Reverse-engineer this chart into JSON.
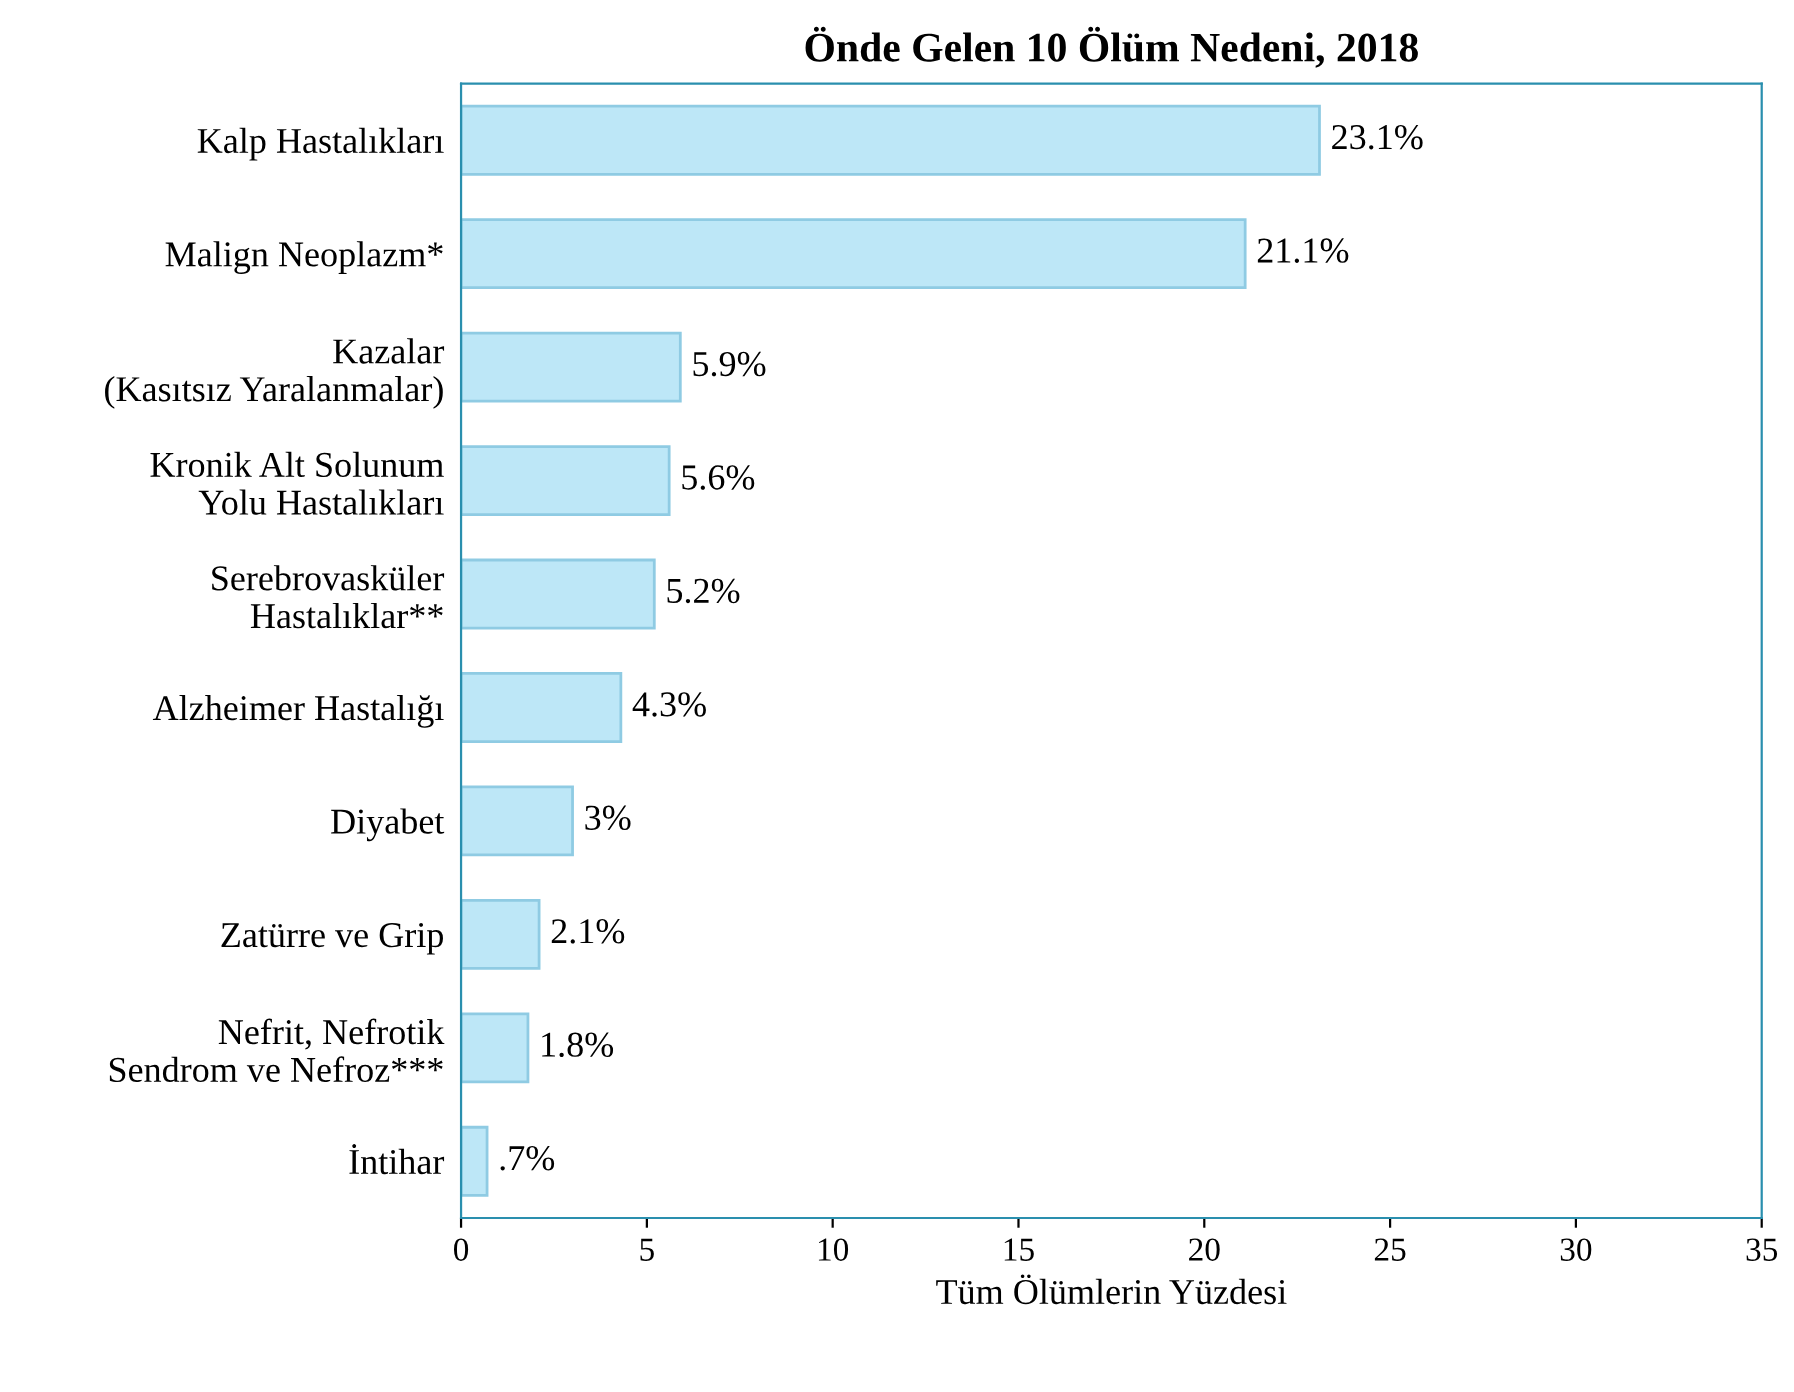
{
  "chart_data": {
    "type": "bar",
    "orientation": "horizontal",
    "title": "Önde Gelen 10 Ölüm Nedeni, 2018",
    "xlabel": "Tüm Ölümlerin Yüzdesi",
    "categories": [
      "Kalp Hastalıkları",
      "Malign Neoplazm*",
      "Kazalar\n(Kasıtsız Yaralanmalar)",
      "Kronik Alt Solunum\nYolu Hastalıkları",
      "Serebrovasküler\nHastalıklar**",
      "Alzheimer Hastalığı",
      "Diyabet",
      "Zatürre ve Grip",
      "Nefrit, Nefrotik\nSendrom ve Nefroz***",
      "İntihar"
    ],
    "values": [
      23.1,
      21.1,
      5.9,
      5.6,
      5.2,
      4.3,
      3,
      2.1,
      1.8,
      0.7
    ],
    "value_labels": [
      "23.1%",
      "21.1%",
      "5.9%",
      "5.6%",
      "5.2%",
      "4.3%",
      "3%",
      "2.1%",
      "1.8%",
      ".7%"
    ],
    "color": "#bde7f7",
    "xlim": [
      0,
      35
    ],
    "xticks": [
      0,
      5,
      10,
      15,
      20,
      25,
      30,
      35
    ],
    "grid": false,
    "legend": false
  }
}
